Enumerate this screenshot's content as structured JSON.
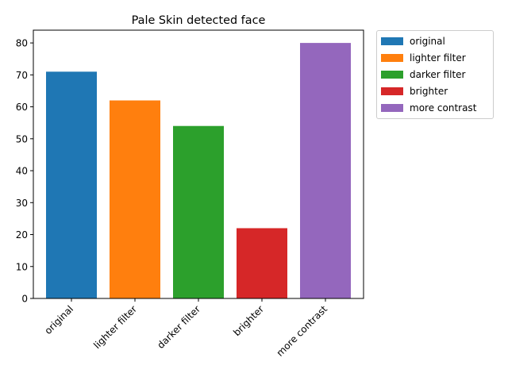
{
  "chart_data": {
    "type": "bar",
    "title": "Pale Skin detected face",
    "xlabel": "",
    "ylabel": "",
    "categories": [
      "original",
      "lighter filter",
      "darker filter",
      "brighter",
      "more contrast"
    ],
    "values": [
      71,
      62,
      54,
      22,
      80
    ],
    "colors": [
      "#1f77b4",
      "#ff7f0e",
      "#2ca02c",
      "#d62728",
      "#9467bd"
    ],
    "ylim": [
      0,
      84
    ],
    "yticks": [
      0,
      10,
      20,
      30,
      40,
      50,
      60,
      70,
      80
    ],
    "grid": false,
    "legend": {
      "placement": "outside-top-right",
      "entries": [
        "original",
        "lighter filter",
        "darker filter",
        "brighter",
        "more contrast"
      ]
    }
  }
}
